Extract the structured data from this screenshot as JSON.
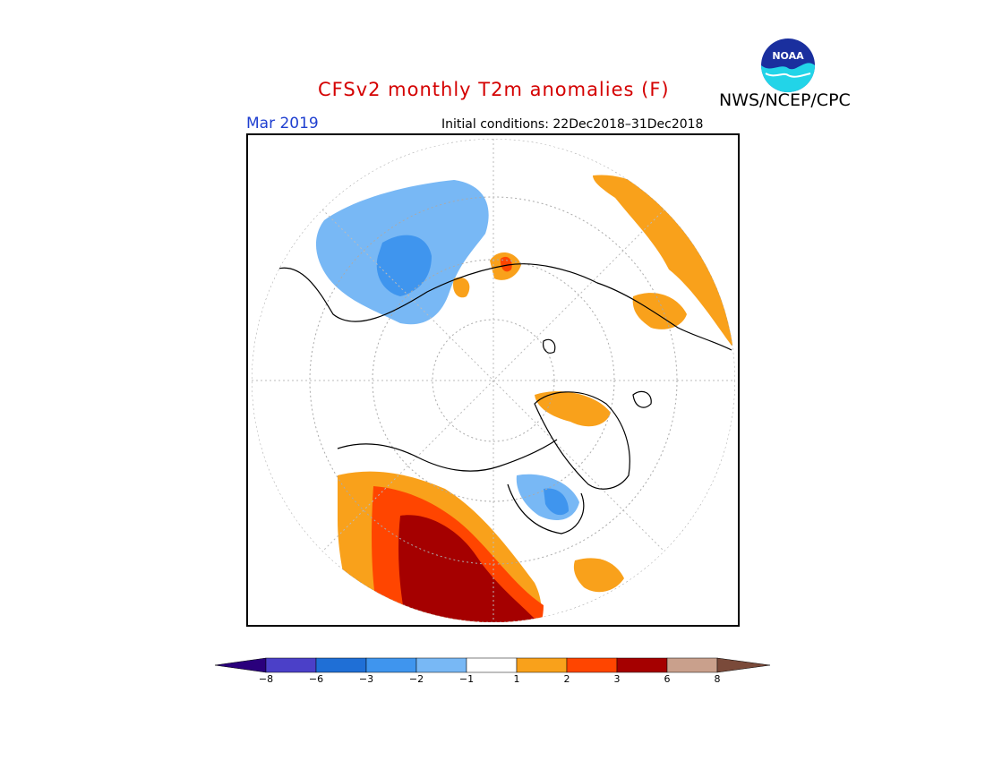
{
  "header": {
    "title": "CFSv2 monthly T2m anomalies (F)",
    "agency": "NWS/NCEP/CPC",
    "valid_month": "Mar 2019",
    "initial_conditions": "Initial conditions: 22Dec2018–31Dec2018",
    "logo_text": "NOAA"
  },
  "legend": {
    "tick_labels": [
      "−8",
      "−6",
      "−3",
      "−2",
      "−1",
      "1",
      "2",
      "3",
      "6",
      "8"
    ],
    "colors": [
      "#2a007c",
      "#4b40c8",
      "#1f6fd6",
      "#3f95ee",
      "#78b8f5",
      "#ffffff",
      "#f9a11b",
      "#ff4500",
      "#a50000",
      "#c9a08c",
      "#7a4a3a"
    ]
  },
  "colors": {
    "title": "#d40000",
    "valid_month": "#1f3fd0",
    "light_blue": "#78b8f5",
    "blue": "#3f95ee",
    "orange": "#f9a11b",
    "red": "#ff4500",
    "dark_red": "#a50000"
  }
}
